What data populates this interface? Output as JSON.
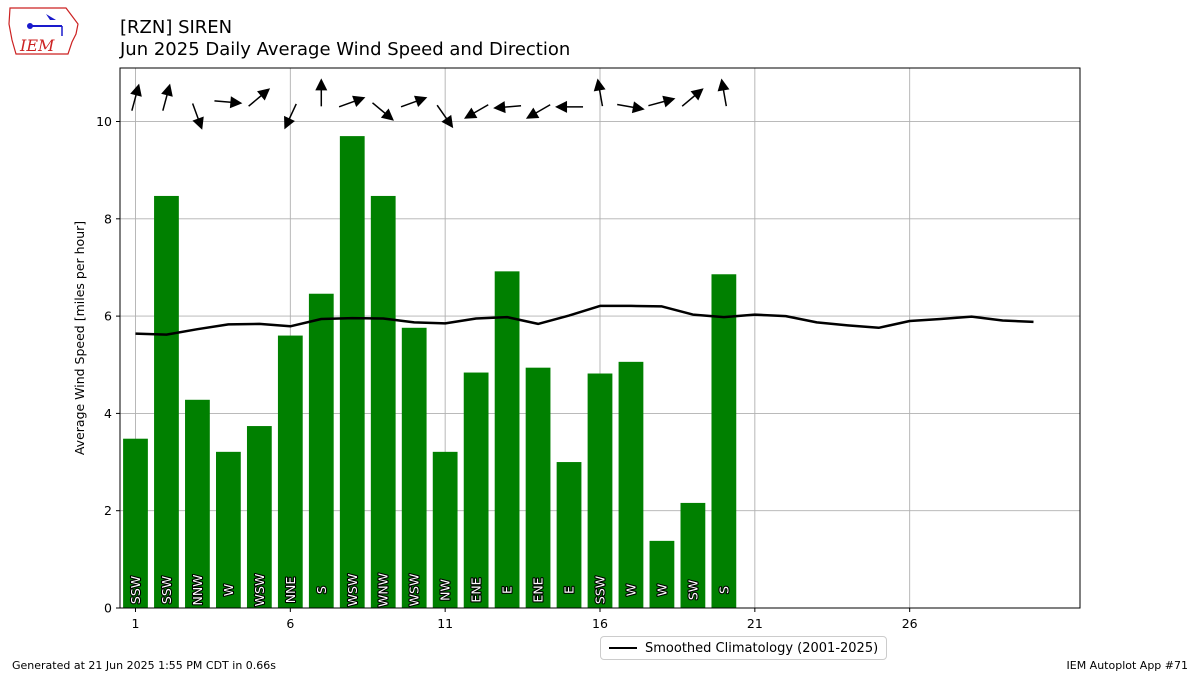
{
  "header": {
    "title_line1": "[RZN] SIREN",
    "title_line2": "Jun 2025 Daily Average Wind Speed and Direction",
    "logo_text": "IEM"
  },
  "footer": {
    "generated": "Generated at 21 Jun 2025 1:55 PM CDT in 0.66s",
    "app": "IEM Autoplot App #71"
  },
  "legend": {
    "climatology_label": "Smoothed Climatology (2001-2025)"
  },
  "colors": {
    "bar": "#008000",
    "climatology_line": "#000000",
    "grid": "#b0b0b0",
    "logo_red": "#cc2222",
    "logo_blue": "#1a1acc"
  },
  "chart_data": {
    "type": "bar",
    "ylabel": "Average Wind Speed [miles per hour]",
    "xlabel": "",
    "xlim": [
      0.5,
      31.5
    ],
    "ylim": [
      0,
      11.1
    ],
    "x_ticks": [
      1,
      6,
      11,
      16,
      21,
      26
    ],
    "y_ticks": [
      0,
      2,
      4,
      6,
      8,
      10
    ],
    "grid": true,
    "legend_position": "bottom-center",
    "days": [
      1,
      2,
      3,
      4,
      5,
      6,
      7,
      8,
      9,
      10,
      11,
      12,
      13,
      14,
      15,
      16,
      17,
      18,
      19,
      20
    ],
    "values": [
      3.48,
      8.47,
      4.28,
      3.21,
      3.74,
      5.6,
      6.46,
      9.7,
      8.47,
      5.76,
      3.21,
      4.84,
      6.92,
      4.94,
      3.0,
      4.82,
      5.06,
      1.38,
      2.16,
      6.86
    ],
    "directions": [
      "SSW",
      "SSW",
      "NNW",
      "W",
      "WSW",
      "NNE",
      "S",
      "WSW",
      "WNW",
      "WSW",
      "NW",
      "ENE",
      "E",
      "ENE",
      "E",
      "SSW",
      "W",
      "W",
      "SW",
      "S"
    ],
    "arrow_angles_deg": [
      15,
      15,
      160,
      95,
      50,
      205,
      0,
      70,
      130,
      70,
      145,
      240,
      265,
      240,
      270,
      350,
      100,
      75,
      50,
      350
    ],
    "arrow_y": [
      10.5,
      10.5,
      10.1,
      10.4,
      10.5,
      10.1,
      10.6,
      10.4,
      10.2,
      10.4,
      10.1,
      10.2,
      10.3,
      10.2,
      10.3,
      10.6,
      10.3,
      10.4,
      10.5,
      10.6
    ],
    "climatology": {
      "name": "Smoothed Climatology (2001-2025)",
      "x": [
        1,
        2,
        3,
        4,
        5,
        6,
        7,
        8,
        9,
        10,
        11,
        12,
        13,
        14,
        15,
        16,
        17,
        18,
        19,
        20,
        21,
        22,
        23,
        24,
        25,
        26,
        27,
        28,
        29,
        30
      ],
      "y": [
        5.64,
        5.62,
        5.73,
        5.83,
        5.84,
        5.79,
        5.94,
        5.96,
        5.95,
        5.87,
        5.85,
        5.95,
        5.98,
        5.84,
        6.01,
        6.21,
        6.21,
        6.2,
        6.03,
        5.98,
        6.03,
        6.0,
        5.87,
        5.81,
        5.76,
        5.9,
        5.94,
        5.99,
        5.91,
        5.88
      ]
    }
  }
}
